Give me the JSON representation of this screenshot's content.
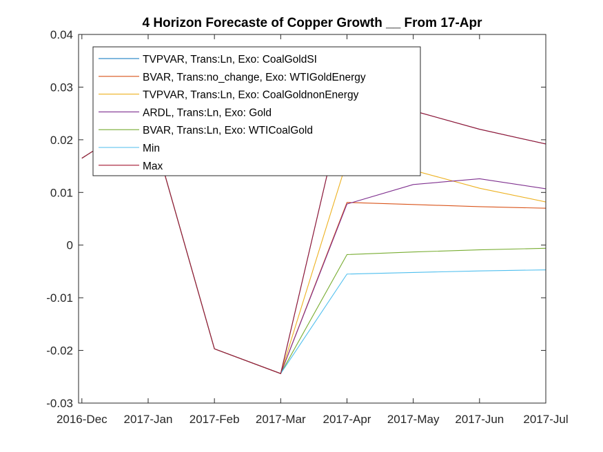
{
  "chart_data": {
    "type": "line",
    "title": "4 Horizon Forecaste of Copper Growth __ From 17-Apr",
    "xlabel": "",
    "ylabel": "",
    "categories": [
      "2016-Dec",
      "2017-Jan",
      "2017-Feb",
      "2017-Mar",
      "2017-Apr",
      "2017-May",
      "2017-Jun",
      "2017-Jul"
    ],
    "x_range": [
      -0.05,
      7.0
    ],
    "ylim": [
      -0.03,
      0.04
    ],
    "yticks": [
      -0.03,
      -0.02,
      -0.01,
      0,
      0.01,
      0.02,
      0.03,
      0.04
    ],
    "ytick_labels": [
      "-0.03",
      "-0.02",
      "-0.01",
      "0",
      "0.01",
      "0.02",
      "0.03",
      "0.04"
    ],
    "grid": false,
    "legend_position": "top-left",
    "series": [
      {
        "name": "TVPVAR, Trans:Ln, Exo: CoalGoldSI",
        "color": "#0072BD",
        "values": [
          0.0165,
          0.0245,
          -0.0197,
          -0.0244,
          0.0295,
          0.0255,
          0.022,
          0.0192
        ]
      },
      {
        "name": "BVAR, Trans:no_change, Exo: WTIGoldEnergy",
        "color": "#D95319",
        "values": [
          0.0165,
          0.0245,
          -0.0197,
          -0.0244,
          0.0081,
          0.0077,
          0.0073,
          0.007
        ]
      },
      {
        "name": "TVPVAR, Trans:Ln, Exo: CoalGoldnonEnergy",
        "color": "#EDB120",
        "values": [
          0.0165,
          0.0245,
          -0.0197,
          -0.0244,
          0.016,
          0.0142,
          0.0108,
          0.0082
        ]
      },
      {
        "name": "ARDL, Trans:Ln, Exo: Gold",
        "color": "#7E2F8E",
        "values": [
          0.0165,
          0.0245,
          -0.0197,
          -0.0244,
          0.0078,
          0.0115,
          0.0126,
          0.0107
        ]
      },
      {
        "name": "BVAR, Trans:Ln, Exo: WTICoalGold",
        "color": "#77AC30",
        "values": [
          0.0165,
          0.0245,
          -0.0197,
          -0.0244,
          -0.0018,
          -0.0013,
          -0.0009,
          -0.0006
        ]
      },
      {
        "name": "Min",
        "color": "#4DBEEE",
        "values": [
          0.0165,
          0.0245,
          -0.0197,
          -0.0244,
          -0.0055,
          -0.0052,
          -0.0049,
          -0.0047
        ]
      },
      {
        "name": "Max",
        "color": "#A2142F",
        "values": [
          0.0165,
          0.0245,
          -0.0197,
          -0.0244,
          0.0295,
          0.0255,
          0.022,
          0.0192
        ]
      }
    ]
  }
}
